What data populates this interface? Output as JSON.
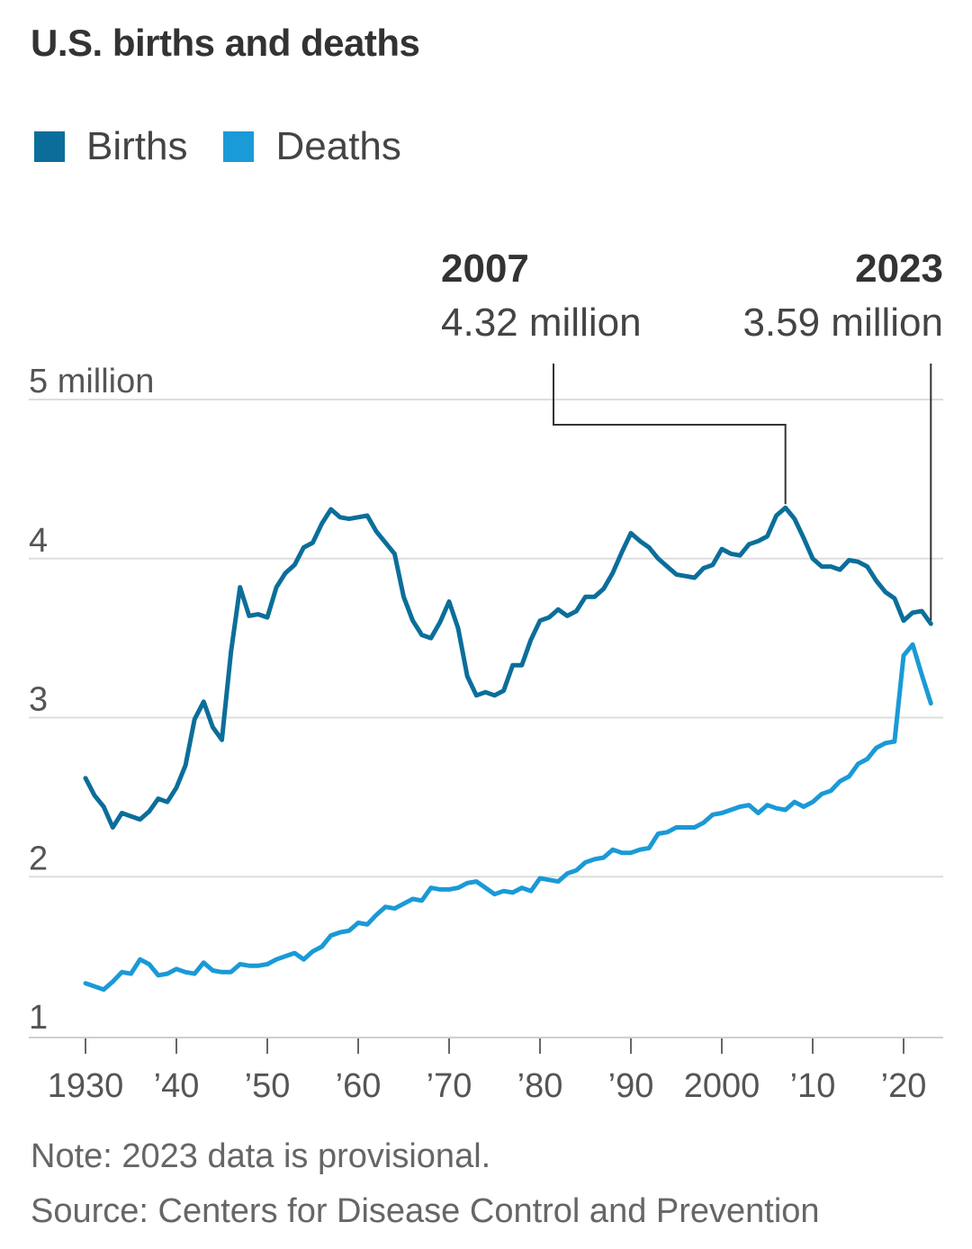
{
  "title": "U.S. births and deaths",
  "legend": [
    {
      "label": "Births",
      "color": "#0b6e9a"
    },
    {
      "label": "Deaths",
      "color": "#1a9ad6"
    }
  ],
  "annotations": [
    {
      "year_label": "2007",
      "value_label": "4.32 million",
      "x": 2007,
      "y": 4.32
    },
    {
      "year_label": "2023",
      "value_label": "3.59 million",
      "x": 2023,
      "y": 3.59
    }
  ],
  "note": "Note: 2023 data is provisional.",
  "source": "Source: Centers for Disease Control and Prevention",
  "chart_data": {
    "type": "line",
    "title": "U.S. births and deaths",
    "xlabel": "",
    "ylabel": "",
    "xlim": [
      1929,
      2024
    ],
    "ylim": [
      1,
      5
    ],
    "grid": true,
    "legend_position": "top-left",
    "x_ticks": [
      1930,
      1940,
      1950,
      1960,
      1970,
      1980,
      1990,
      2000,
      2010,
      2020
    ],
    "x_tick_labels": [
      "1930",
      "’40",
      "’50",
      "’60",
      "’70",
      "’80",
      "’90",
      "2000",
      "’10",
      "’20"
    ],
    "y_ticks": [
      1,
      2,
      3,
      4,
      5
    ],
    "y_tick_labels": [
      "1",
      "2",
      "3",
      "4",
      "5 million"
    ],
    "series": [
      {
        "name": "Births",
        "color": "#0b6e9a",
        "x": [
          1930,
          1931,
          1932,
          1933,
          1934,
          1935,
          1936,
          1937,
          1938,
          1939,
          1940,
          1941,
          1942,
          1943,
          1944,
          1945,
          1946,
          1947,
          1948,
          1949,
          1950,
          1951,
          1952,
          1953,
          1954,
          1955,
          1956,
          1957,
          1958,
          1959,
          1960,
          1961,
          1962,
          1963,
          1964,
          1965,
          1966,
          1967,
          1968,
          1969,
          1970,
          1971,
          1972,
          1973,
          1974,
          1975,
          1976,
          1977,
          1978,
          1979,
          1980,
          1981,
          1982,
          1983,
          1984,
          1985,
          1986,
          1987,
          1988,
          1989,
          1990,
          1991,
          1992,
          1993,
          1994,
          1995,
          1996,
          1997,
          1998,
          1999,
          2000,
          2001,
          2002,
          2003,
          2004,
          2005,
          2006,
          2007,
          2008,
          2009,
          2010,
          2011,
          2012,
          2013,
          2014,
          2015,
          2016,
          2017,
          2018,
          2019,
          2020,
          2021,
          2022,
          2023
        ],
        "y": [
          2.62,
          2.51,
          2.44,
          2.31,
          2.4,
          2.38,
          2.36,
          2.41,
          2.49,
          2.47,
          2.56,
          2.7,
          2.99,
          3.1,
          2.94,
          2.86,
          3.41,
          3.82,
          3.64,
          3.65,
          3.63,
          3.82,
          3.91,
          3.96,
          4.07,
          4.1,
          4.22,
          4.31,
          4.26,
          4.25,
          4.26,
          4.27,
          4.17,
          4.1,
          4.03,
          3.76,
          3.61,
          3.52,
          3.5,
          3.6,
          3.73,
          3.56,
          3.26,
          3.14,
          3.16,
          3.14,
          3.17,
          3.33,
          3.33,
          3.49,
          3.61,
          3.63,
          3.68,
          3.64,
          3.67,
          3.76,
          3.76,
          3.81,
          3.91,
          4.04,
          4.16,
          4.11,
          4.07,
          4.0,
          3.95,
          3.9,
          3.89,
          3.88,
          3.94,
          3.96,
          4.06,
          4.03,
          4.02,
          4.09,
          4.11,
          4.14,
          4.27,
          4.32,
          4.25,
          4.13,
          4.0,
          3.95,
          3.95,
          3.93,
          3.99,
          3.98,
          3.95,
          3.86,
          3.79,
          3.75,
          3.61,
          3.66,
          3.67,
          3.59
        ]
      },
      {
        "name": "Deaths",
        "color": "#1a9ad6",
        "x": [
          1930,
          1931,
          1932,
          1933,
          1934,
          1935,
          1936,
          1937,
          1938,
          1939,
          1940,
          1941,
          1942,
          1943,
          1944,
          1945,
          1946,
          1947,
          1948,
          1949,
          1950,
          1951,
          1952,
          1953,
          1954,
          1955,
          1956,
          1957,
          1958,
          1959,
          1960,
          1961,
          1962,
          1963,
          1964,
          1965,
          1966,
          1967,
          1968,
          1969,
          1970,
          1971,
          1972,
          1973,
          1974,
          1975,
          1976,
          1977,
          1978,
          1979,
          1980,
          1981,
          1982,
          1983,
          1984,
          1985,
          1986,
          1987,
          1988,
          1989,
          1990,
          1991,
          1992,
          1993,
          1994,
          1995,
          1996,
          1997,
          1998,
          1999,
          2000,
          2001,
          2002,
          2003,
          2004,
          2005,
          2006,
          2007,
          2008,
          2009,
          2010,
          2011,
          2012,
          2013,
          2014,
          2015,
          2016,
          2017,
          2018,
          2019,
          2020,
          2021,
          2022,
          2023
        ],
        "y": [
          1.33,
          1.31,
          1.29,
          1.34,
          1.4,
          1.39,
          1.48,
          1.45,
          1.38,
          1.39,
          1.42,
          1.4,
          1.39,
          1.46,
          1.41,
          1.4,
          1.4,
          1.45,
          1.44,
          1.44,
          1.45,
          1.48,
          1.5,
          1.52,
          1.48,
          1.53,
          1.56,
          1.63,
          1.65,
          1.66,
          1.71,
          1.7,
          1.76,
          1.81,
          1.8,
          1.83,
          1.86,
          1.85,
          1.93,
          1.92,
          1.92,
          1.93,
          1.96,
          1.97,
          1.93,
          1.89,
          1.91,
          1.9,
          1.93,
          1.91,
          1.99,
          1.98,
          1.97,
          2.02,
          2.04,
          2.09,
          2.11,
          2.12,
          2.17,
          2.15,
          2.15,
          2.17,
          2.18,
          2.27,
          2.28,
          2.31,
          2.31,
          2.31,
          2.34,
          2.39,
          2.4,
          2.42,
          2.44,
          2.45,
          2.4,
          2.45,
          2.43,
          2.42,
          2.47,
          2.44,
          2.47,
          2.52,
          2.54,
          2.6,
          2.63,
          2.71,
          2.74,
          2.81,
          2.84,
          2.85,
          3.39,
          3.46,
          3.27,
          3.09
        ]
      }
    ]
  }
}
